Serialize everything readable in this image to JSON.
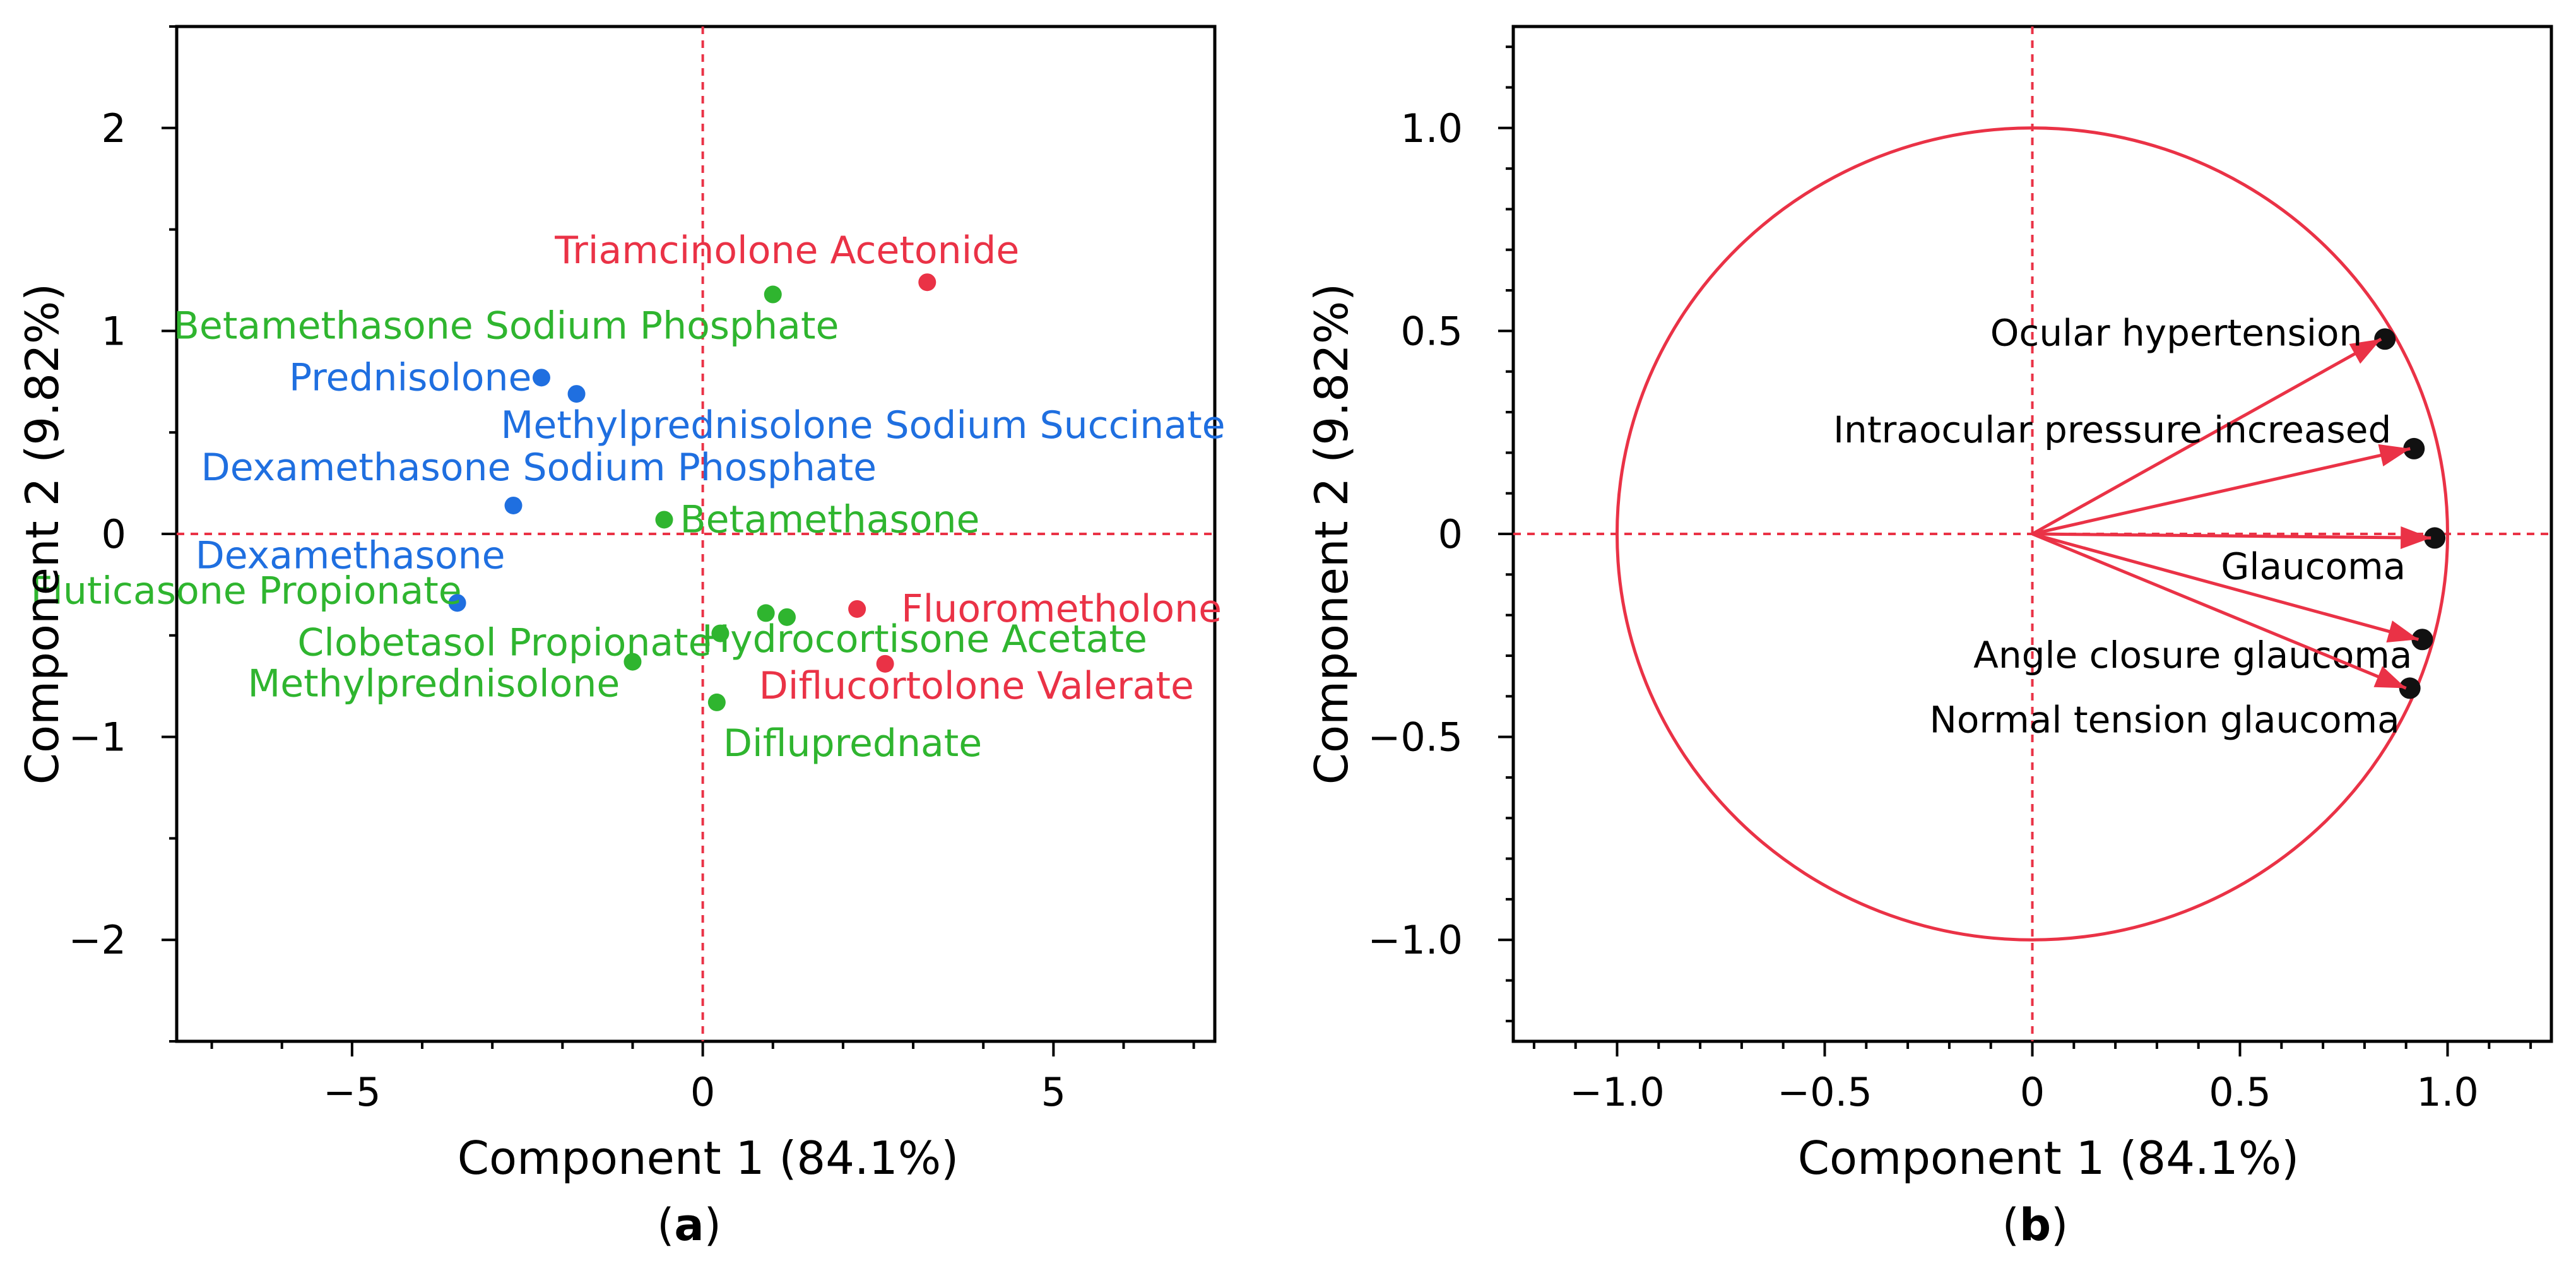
{
  "chart_data": [
    {
      "type": "scatter",
      "panel_label": "a",
      "xlabel": "Component 1 (84.1%)",
      "ylabel": "Component 2 (9.82%)",
      "xlim": [
        -7.5,
        7.3
      ],
      "ylim": [
        -2.5,
        2.5
      ],
      "xticks": [
        -5,
        0,
        5
      ],
      "yticks": [
        -2,
        -1,
        0,
        1,
        2
      ],
      "xtick_labels": [
        "−5",
        "0",
        "5"
      ],
      "ytick_labels": [
        "−2",
        "−1",
        "0",
        "1",
        "2"
      ],
      "reference_lines": {
        "x": 0,
        "y": 0
      },
      "groups": [
        {
          "name": "blue",
          "color": "#1f6fe0"
        },
        {
          "name": "green",
          "color": "#2fb52f"
        },
        {
          "name": "red",
          "color": "#ea3246"
        }
      ],
      "points": [
        {
          "label": "Triamcinolone Acetonide",
          "x": 3.2,
          "y": 1.24,
          "group": "red"
        },
        {
          "label": "Betamethasone Sodium Phosphate",
          "x": 1.0,
          "y": 1.18,
          "group": "green"
        },
        {
          "label": "Prednisolone",
          "x": -2.3,
          "y": 0.77,
          "group": "blue"
        },
        {
          "label": "Methylprednisolone Sodium Succinate",
          "x": -1.8,
          "y": 0.69,
          "group": "blue"
        },
        {
          "label": "Dexamethasone Sodium Phosphate",
          "x": -2.7,
          "y": 0.14,
          "group": "blue"
        },
        {
          "label": "Betamethasone",
          "x": -0.55,
          "y": 0.07,
          "group": "green"
        },
        {
          "label": "Dexamethasone",
          "x": -3.5,
          "y": -0.34,
          "group": "blue"
        },
        {
          "label": "Fluticasone Propionate",
          "x": 0.9,
          "y": -0.39,
          "group": "green"
        },
        {
          "label": "Hydrocortisone Acetate",
          "x": 1.2,
          "y": -0.41,
          "group": "green"
        },
        {
          "label": "Clobetasol Propionate",
          "x": 0.25,
          "y": -0.49,
          "group": "green"
        },
        {
          "label": "Fluorometholone",
          "x": 2.2,
          "y": -0.37,
          "group": "red"
        },
        {
          "label": "Methylprednisolone",
          "x": -1.0,
          "y": -0.63,
          "group": "green"
        },
        {
          "label": "Diflucortolone Valerate",
          "x": 2.6,
          "y": -0.64,
          "group": "red"
        },
        {
          "label": "Difluprednate",
          "x": 0.2,
          "y": -0.83,
          "group": "green"
        }
      ],
      "caption": "(a)"
    },
    {
      "type": "loading_plot",
      "panel_label": "b",
      "xlabel": "Component 1 (84.1%)",
      "ylabel": "Component 2 (9.82%)",
      "xlim": [
        -1.25,
        1.25
      ],
      "ylim": [
        -1.25,
        1.25
      ],
      "xticks": [
        -1.0,
        -0.5,
        0,
        0.5,
        1.0
      ],
      "yticks": [
        -1.0,
        -0.5,
        0,
        0.5,
        1.0
      ],
      "xtick_labels": [
        "−1.0",
        "−0.5",
        "0",
        "0.5",
        "1.0"
      ],
      "ytick_labels": [
        "−1.0",
        "−0.5",
        "0",
        "0.5",
        "1.0"
      ],
      "unit_circle": true,
      "reference_lines": {
        "x": 0,
        "y": 0
      },
      "vector_color": "#ea3246",
      "vectors": [
        {
          "label": "Ocular hypertension",
          "x": 0.84,
          "y": 0.48
        },
        {
          "label": "Intraocular pressure increased",
          "x": 0.91,
          "y": 0.21
        },
        {
          "label": "Glaucoma",
          "x": 0.96,
          "y": -0.01
        },
        {
          "label": "Angle closure glaucoma",
          "x": 0.93,
          "y": -0.26
        },
        {
          "label": "Normal tension glaucoma",
          "x": 0.9,
          "y": -0.38
        }
      ],
      "caption": "(b)"
    }
  ]
}
